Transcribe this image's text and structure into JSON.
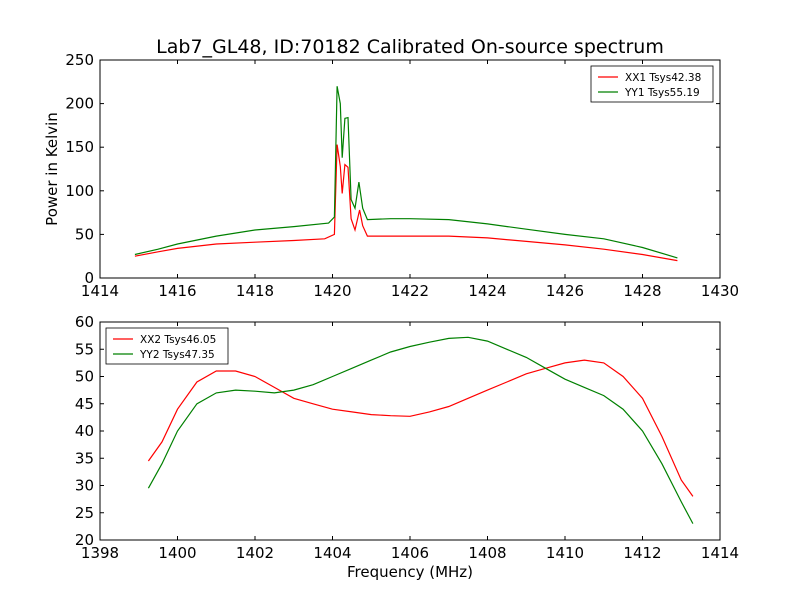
{
  "title": "Lab7_GL48, ID:70182 Calibrated On-source spectrum",
  "colors": {
    "xx": "#ff0000",
    "yy": "#008000"
  },
  "chart_data": [
    {
      "type": "line",
      "title": "Lab7_GL48, ID:70182 Calibrated On-source spectrum",
      "xlabel": "",
      "ylabel": "Power in Kelvin",
      "xlim": [
        1414,
        1430
      ],
      "ylim": [
        0,
        250
      ],
      "xticks": [
        1414,
        1416,
        1418,
        1420,
        1422,
        1424,
        1426,
        1428,
        1430
      ],
      "yticks": [
        0,
        50,
        100,
        150,
        200,
        250
      ],
      "legend_position": "top-right",
      "series": [
        {
          "name": "XX1 Tsys42.38",
          "color": "#ff0000",
          "points": [
            [
              1414.9,
              25
            ],
            [
              1415.5,
              30
            ],
            [
              1416,
              34
            ],
            [
              1417,
              39
            ],
            [
              1418,
              41
            ],
            [
              1419,
              43
            ],
            [
              1419.8,
              45
            ],
            [
              1420.05,
              50
            ],
            [
              1420.12,
              153
            ],
            [
              1420.2,
              128
            ],
            [
              1420.25,
              97
            ],
            [
              1420.32,
              130
            ],
            [
              1420.4,
              127
            ],
            [
              1420.48,
              68
            ],
            [
              1420.58,
              55
            ],
            [
              1420.7,
              78
            ],
            [
              1420.78,
              60
            ],
            [
              1420.9,
              48
            ],
            [
              1421.5,
              48
            ],
            [
              1422,
              48
            ],
            [
              1423,
              48
            ],
            [
              1424,
              46
            ],
            [
              1425,
              42
            ],
            [
              1426,
              38
            ],
            [
              1427,
              33
            ],
            [
              1428,
              27
            ],
            [
              1428.9,
              20
            ]
          ]
        },
        {
          "name": "YY1 Tsys55.19",
          "color": "#008000",
          "points": [
            [
              1414.9,
              27
            ],
            [
              1415.5,
              33
            ],
            [
              1416,
              39
            ],
            [
              1417,
              48
            ],
            [
              1418,
              55
            ],
            [
              1419,
              59
            ],
            [
              1419.9,
              63
            ],
            [
              1420.05,
              70
            ],
            [
              1420.12,
              220
            ],
            [
              1420.2,
              200
            ],
            [
              1420.25,
              138
            ],
            [
              1420.32,
              183
            ],
            [
              1420.4,
              184
            ],
            [
              1420.48,
              90
            ],
            [
              1420.58,
              80
            ],
            [
              1420.68,
              110
            ],
            [
              1420.78,
              80
            ],
            [
              1420.9,
              67
            ],
            [
              1421.5,
              68
            ],
            [
              1422,
              68
            ],
            [
              1423,
              67
            ],
            [
              1424,
              62
            ],
            [
              1425,
              56
            ],
            [
              1426,
              50
            ],
            [
              1427,
              45
            ],
            [
              1428,
              35
            ],
            [
              1428.9,
              23
            ]
          ]
        }
      ]
    },
    {
      "type": "line",
      "title": "",
      "xlabel": "Frequency (MHz)",
      "ylabel": "",
      "xlim": [
        1398,
        1414
      ],
      "ylim": [
        20,
        60
      ],
      "xticks": [
        1398,
        1400,
        1402,
        1404,
        1406,
        1408,
        1410,
        1412,
        1414
      ],
      "yticks": [
        20,
        25,
        30,
        35,
        40,
        45,
        50,
        55,
        60
      ],
      "legend_position": "top-left",
      "series": [
        {
          "name": "XX2 Tsys46.05",
          "color": "#ff0000",
          "points": [
            [
              1399.25,
              34.5
            ],
            [
              1399.6,
              38
            ],
            [
              1400,
              44
            ],
            [
              1400.5,
              49
            ],
            [
              1401,
              51
            ],
            [
              1401.5,
              51
            ],
            [
              1402,
              50
            ],
            [
              1402.5,
              48
            ],
            [
              1403,
              46
            ],
            [
              1403.5,
              45
            ],
            [
              1404,
              44
            ],
            [
              1404.5,
              43.5
            ],
            [
              1405,
              43
            ],
            [
              1405.5,
              42.8
            ],
            [
              1406,
              42.7
            ],
            [
              1406.5,
              43.5
            ],
            [
              1407,
              44.5
            ],
            [
              1407.5,
              46
            ],
            [
              1408,
              47.5
            ],
            [
              1408.5,
              49
            ],
            [
              1409,
              50.5
            ],
            [
              1409.5,
              51.5
            ],
            [
              1410,
              52.5
            ],
            [
              1410.5,
              53
            ],
            [
              1411,
              52.5
            ],
            [
              1411.5,
              50
            ],
            [
              1412,
              46
            ],
            [
              1412.5,
              39
            ],
            [
              1413,
              31
            ],
            [
              1413.3,
              28
            ]
          ]
        },
        {
          "name": "YY2 Tsys47.35",
          "color": "#008000",
          "points": [
            [
              1399.25,
              29.5
            ],
            [
              1399.6,
              34
            ],
            [
              1400,
              40
            ],
            [
              1400.5,
              45
            ],
            [
              1401,
              47
            ],
            [
              1401.5,
              47.5
            ],
            [
              1402,
              47.3
            ],
            [
              1402.5,
              47
            ],
            [
              1403,
              47.5
            ],
            [
              1403.5,
              48.5
            ],
            [
              1404,
              50
            ],
            [
              1404.5,
              51.5
            ],
            [
              1405,
              53
            ],
            [
              1405.5,
              54.5
            ],
            [
              1406,
              55.5
            ],
            [
              1406.5,
              56.3
            ],
            [
              1407,
              57
            ],
            [
              1407.5,
              57.2
            ],
            [
              1408,
              56.5
            ],
            [
              1408.5,
              55
            ],
            [
              1409,
              53.5
            ],
            [
              1409.5,
              51.5
            ],
            [
              1410,
              49.5
            ],
            [
              1410.5,
              48
            ],
            [
              1411,
              46.5
            ],
            [
              1411.5,
              44
            ],
            [
              1412,
              40
            ],
            [
              1412.5,
              34
            ],
            [
              1413,
              27
            ],
            [
              1413.3,
              23
            ]
          ]
        }
      ]
    }
  ]
}
